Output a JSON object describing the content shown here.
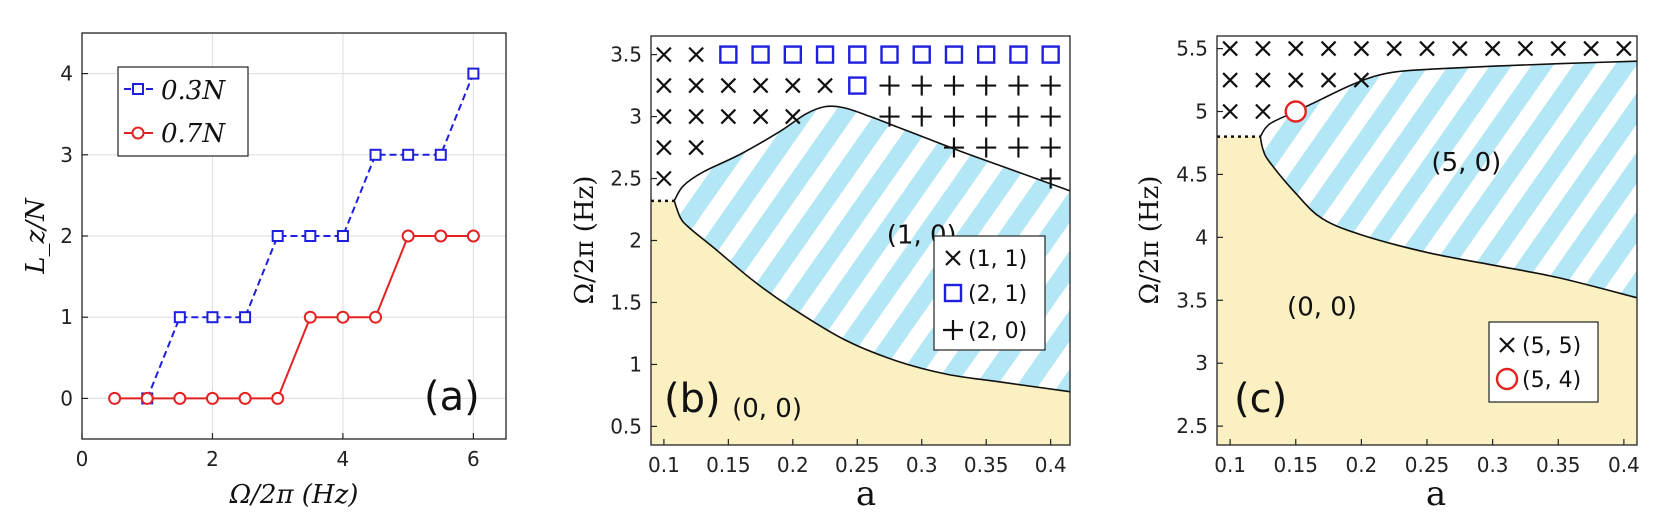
{
  "colors": {
    "yellow": "#fbf0c2",
    "stripe": "#b3e7f5",
    "blue": "#1f1fe0",
    "red": "#e52222",
    "black": "#111111"
  },
  "chart_data": [
    {
      "panel": "a",
      "type": "line",
      "panel_label": "(a)",
      "xlabel": "Ω/2π (Hz)",
      "ylabel": "L_z/N",
      "xlim": [
        0,
        6.5
      ],
      "ylim": [
        -0.5,
        4.5
      ],
      "xticks": [
        0,
        2,
        4,
        6
      ],
      "yticks": [
        0,
        1,
        2,
        3,
        4
      ],
      "grid": true,
      "legend_position": "top-left",
      "series": [
        {
          "name": "0.3N",
          "color": "#1f1fe0",
          "marker": "square",
          "linestyle": "dashed",
          "x": [
            1.0,
            1.5,
            2.0,
            2.5,
            3.0,
            3.5,
            4.0,
            4.5,
            5.0,
            5.5,
            6.0
          ],
          "y": [
            0,
            1,
            1,
            1,
            2,
            2,
            2,
            3,
            3,
            3,
            4
          ]
        },
        {
          "name": "0.7N",
          "color": "#e52222",
          "marker": "circle",
          "linestyle": "solid",
          "x": [
            0.5,
            1.0,
            1.5,
            2.0,
            2.5,
            3.0,
            3.5,
            4.0,
            4.5,
            5.0,
            5.5,
            6.0
          ],
          "y": [
            0,
            0,
            0,
            0,
            0,
            0,
            1,
            1,
            1,
            2,
            2,
            2
          ]
        }
      ]
    },
    {
      "panel": "b",
      "type": "scatter",
      "panel_label": "(b)",
      "xlabel": "a",
      "ylabel": "Ω/2π (Hz)",
      "xlim": [
        0.09,
        0.415
      ],
      "ylim": [
        0.35,
        3.65
      ],
      "xticks": [
        0.1,
        0.15,
        0.2,
        0.25,
        0.3,
        0.35,
        0.4
      ],
      "yticks": [
        0.5,
        1,
        1.5,
        2,
        2.5,
        3,
        3.5
      ],
      "legend_position": "bottom-right",
      "regions": [
        {
          "label": "(0, 0)",
          "fill": "#fbf0c2",
          "x": 0.18,
          "y": 0.65
        },
        {
          "label": "(1, 0)",
          "fill": "stripes",
          "x": 0.3,
          "y": 2.05
        }
      ],
      "lower_boundary": {
        "x": [
          0.108,
          0.113,
          0.12,
          0.14,
          0.17,
          0.2,
          0.24,
          0.28,
          0.32,
          0.36,
          0.415
        ],
        "y": [
          2.32,
          2.18,
          2.1,
          1.93,
          1.67,
          1.45,
          1.2,
          1.03,
          0.92,
          0.86,
          0.78
        ]
      },
      "upper_boundary": {
        "x": [
          0.108,
          0.115,
          0.13,
          0.16,
          0.19,
          0.21,
          0.225,
          0.24,
          0.26,
          0.29,
          0.33,
          0.37,
          0.415
        ],
        "y": [
          2.32,
          2.44,
          2.55,
          2.7,
          2.88,
          3.02,
          3.08,
          3.07,
          3.0,
          2.88,
          2.72,
          2.57,
          2.4
        ]
      },
      "dotted_segment": {
        "x": [
          0.09,
          0.108
        ],
        "y": [
          2.32,
          2.32
        ]
      },
      "series": [
        {
          "name": "(1, 1)",
          "marker": "x",
          "color": "#111111",
          "points": [
            [
              0.1,
              3.5
            ],
            [
              0.125,
              3.5
            ],
            [
              0.1,
              3.25
            ],
            [
              0.125,
              3.25
            ],
            [
              0.15,
              3.25
            ],
            [
              0.175,
              3.25
            ],
            [
              0.2,
              3.25
            ],
            [
              0.225,
              3.25
            ],
            [
              0.1,
              3.0
            ],
            [
              0.125,
              3.0
            ],
            [
              0.15,
              3.0
            ],
            [
              0.175,
              3.0
            ],
            [
              0.2,
              3.0
            ],
            [
              0.1,
              2.75
            ],
            [
              0.125,
              2.75
            ],
            [
              0.1,
              2.5
            ]
          ]
        },
        {
          "name": "(2, 1)",
          "marker": "square",
          "color": "#1f1fe0",
          "points": [
            [
              0.15,
              3.5
            ],
            [
              0.175,
              3.5
            ],
            [
              0.2,
              3.5
            ],
            [
              0.225,
              3.5
            ],
            [
              0.25,
              3.5
            ],
            [
              0.275,
              3.5
            ],
            [
              0.3,
              3.5
            ],
            [
              0.325,
              3.5
            ],
            [
              0.35,
              3.5
            ],
            [
              0.375,
              3.5
            ],
            [
              0.4,
              3.5
            ],
            [
              0.25,
              3.25
            ]
          ]
        },
        {
          "name": "(2, 0)",
          "marker": "plus",
          "color": "#111111",
          "points": [
            [
              0.275,
              3.25
            ],
            [
              0.3,
              3.25
            ],
            [
              0.325,
              3.25
            ],
            [
              0.35,
              3.25
            ],
            [
              0.375,
              3.25
            ],
            [
              0.4,
              3.25
            ],
            [
              0.275,
              3.0
            ],
            [
              0.3,
              3.0
            ],
            [
              0.325,
              3.0
            ],
            [
              0.35,
              3.0
            ],
            [
              0.375,
              3.0
            ],
            [
              0.4,
              3.0
            ],
            [
              0.325,
              2.75
            ],
            [
              0.35,
              2.75
            ],
            [
              0.375,
              2.75
            ],
            [
              0.4,
              2.75
            ],
            [
              0.4,
              2.5
            ]
          ]
        }
      ]
    },
    {
      "panel": "c",
      "type": "scatter",
      "panel_label": "(c)",
      "xlabel": "a",
      "ylabel": "Ω/2π (Hz)",
      "xlim": [
        0.09,
        0.41
      ],
      "ylim": [
        2.35,
        5.6
      ],
      "xticks": [
        0.1,
        0.15,
        0.2,
        0.25,
        0.3,
        0.35,
        0.4
      ],
      "yticks": [
        2.5,
        3,
        3.5,
        4,
        4.5,
        5,
        5.5
      ],
      "legend_position": "bottom-right",
      "regions": [
        {
          "label": "(0, 0)",
          "fill": "#fbf0c2",
          "x": 0.17,
          "y": 3.45
        },
        {
          "label": "(5, 0)",
          "fill": "stripes",
          "x": 0.28,
          "y": 4.6
        }
      ],
      "lower_boundary": {
        "x": [
          0.123,
          0.125,
          0.13,
          0.15,
          0.17,
          0.2,
          0.25,
          0.3,
          0.35,
          0.41
        ],
        "y": [
          4.8,
          4.7,
          4.6,
          4.35,
          4.15,
          4.02,
          3.88,
          3.78,
          3.68,
          3.52
        ]
      },
      "upper_boundary": {
        "x": [
          0.123,
          0.13,
          0.15,
          0.17,
          0.19,
          0.21,
          0.23,
          0.26,
          0.3,
          0.35,
          0.41
        ],
        "y": [
          4.8,
          4.9,
          5.0,
          5.1,
          5.2,
          5.28,
          5.32,
          5.34,
          5.36,
          5.38,
          5.4
        ]
      },
      "dotted_segment": {
        "x": [
          0.09,
          0.123
        ],
        "y": [
          4.8,
          4.8
        ]
      },
      "series": [
        {
          "name": "(5, 5)",
          "marker": "x",
          "color": "#111111",
          "points": [
            [
              0.1,
              5.5
            ],
            [
              0.125,
              5.5
            ],
            [
              0.15,
              5.5
            ],
            [
              0.175,
              5.5
            ],
            [
              0.2,
              5.5
            ],
            [
              0.225,
              5.5
            ],
            [
              0.25,
              5.5
            ],
            [
              0.275,
              5.5
            ],
            [
              0.3,
              5.5
            ],
            [
              0.325,
              5.5
            ],
            [
              0.35,
              5.5
            ],
            [
              0.375,
              5.5
            ],
            [
              0.4,
              5.5
            ],
            [
              0.1,
              5.25
            ],
            [
              0.125,
              5.25
            ],
            [
              0.15,
              5.25
            ],
            [
              0.175,
              5.25
            ],
            [
              0.2,
              5.25
            ],
            [
              0.1,
              5.0
            ],
            [
              0.125,
              5.0
            ]
          ]
        },
        {
          "name": "(5, 4)",
          "marker": "circle",
          "color": "#e52222",
          "points": [
            [
              0.15,
              5.0
            ]
          ]
        }
      ]
    }
  ]
}
